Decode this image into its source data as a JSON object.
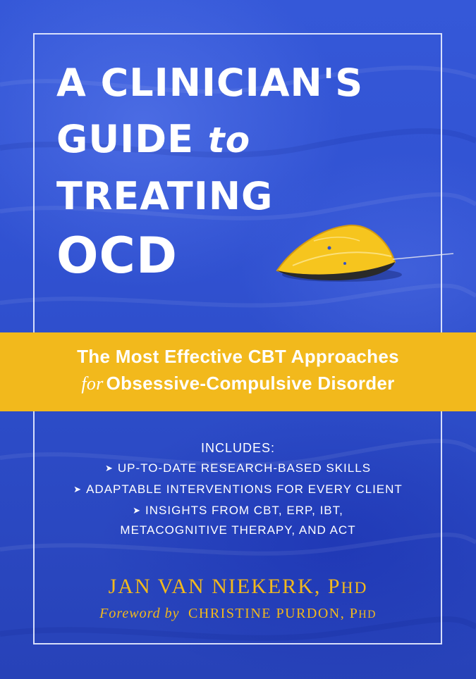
{
  "title": {
    "line1": "A CLINICIAN'S",
    "line2_main": "GUIDE",
    "line2_italic": "to",
    "line3": "TREATING",
    "line4": "OCD"
  },
  "subtitle": {
    "line1": "The Most Effective CBT Approaches",
    "line2_italic": "for",
    "line2_main": "Obsessive-Compulsive Disorder"
  },
  "includes": {
    "heading": "INCLUDES:",
    "items": [
      "UP-TO-DATE RESEARCH-BASED SKILLS",
      "ADAPTABLE INTERVENTIONS FOR EVERY CLIENT",
      "INSIGHTS FROM CBT, ERP, IBT,"
    ],
    "item3_continued": "METACOGNITIVE THERAPY, AND ACT"
  },
  "author": {
    "name": "JAN VAN NIEKERK,",
    "degree_p": "P",
    "degree_rest": "HD"
  },
  "foreword": {
    "label": "Foreword by",
    "name": "CHRISTINE PURDON,",
    "degree_p": "P",
    "degree_rest": "HD"
  },
  "colors": {
    "background": "#3152d2",
    "band": "#f2b91c",
    "author_text": "#f2b91c",
    "title_text": "#ffffff"
  },
  "icons": {
    "bullet": "chevron-right-icon",
    "illustration": "yellow-leaf-on-water"
  }
}
